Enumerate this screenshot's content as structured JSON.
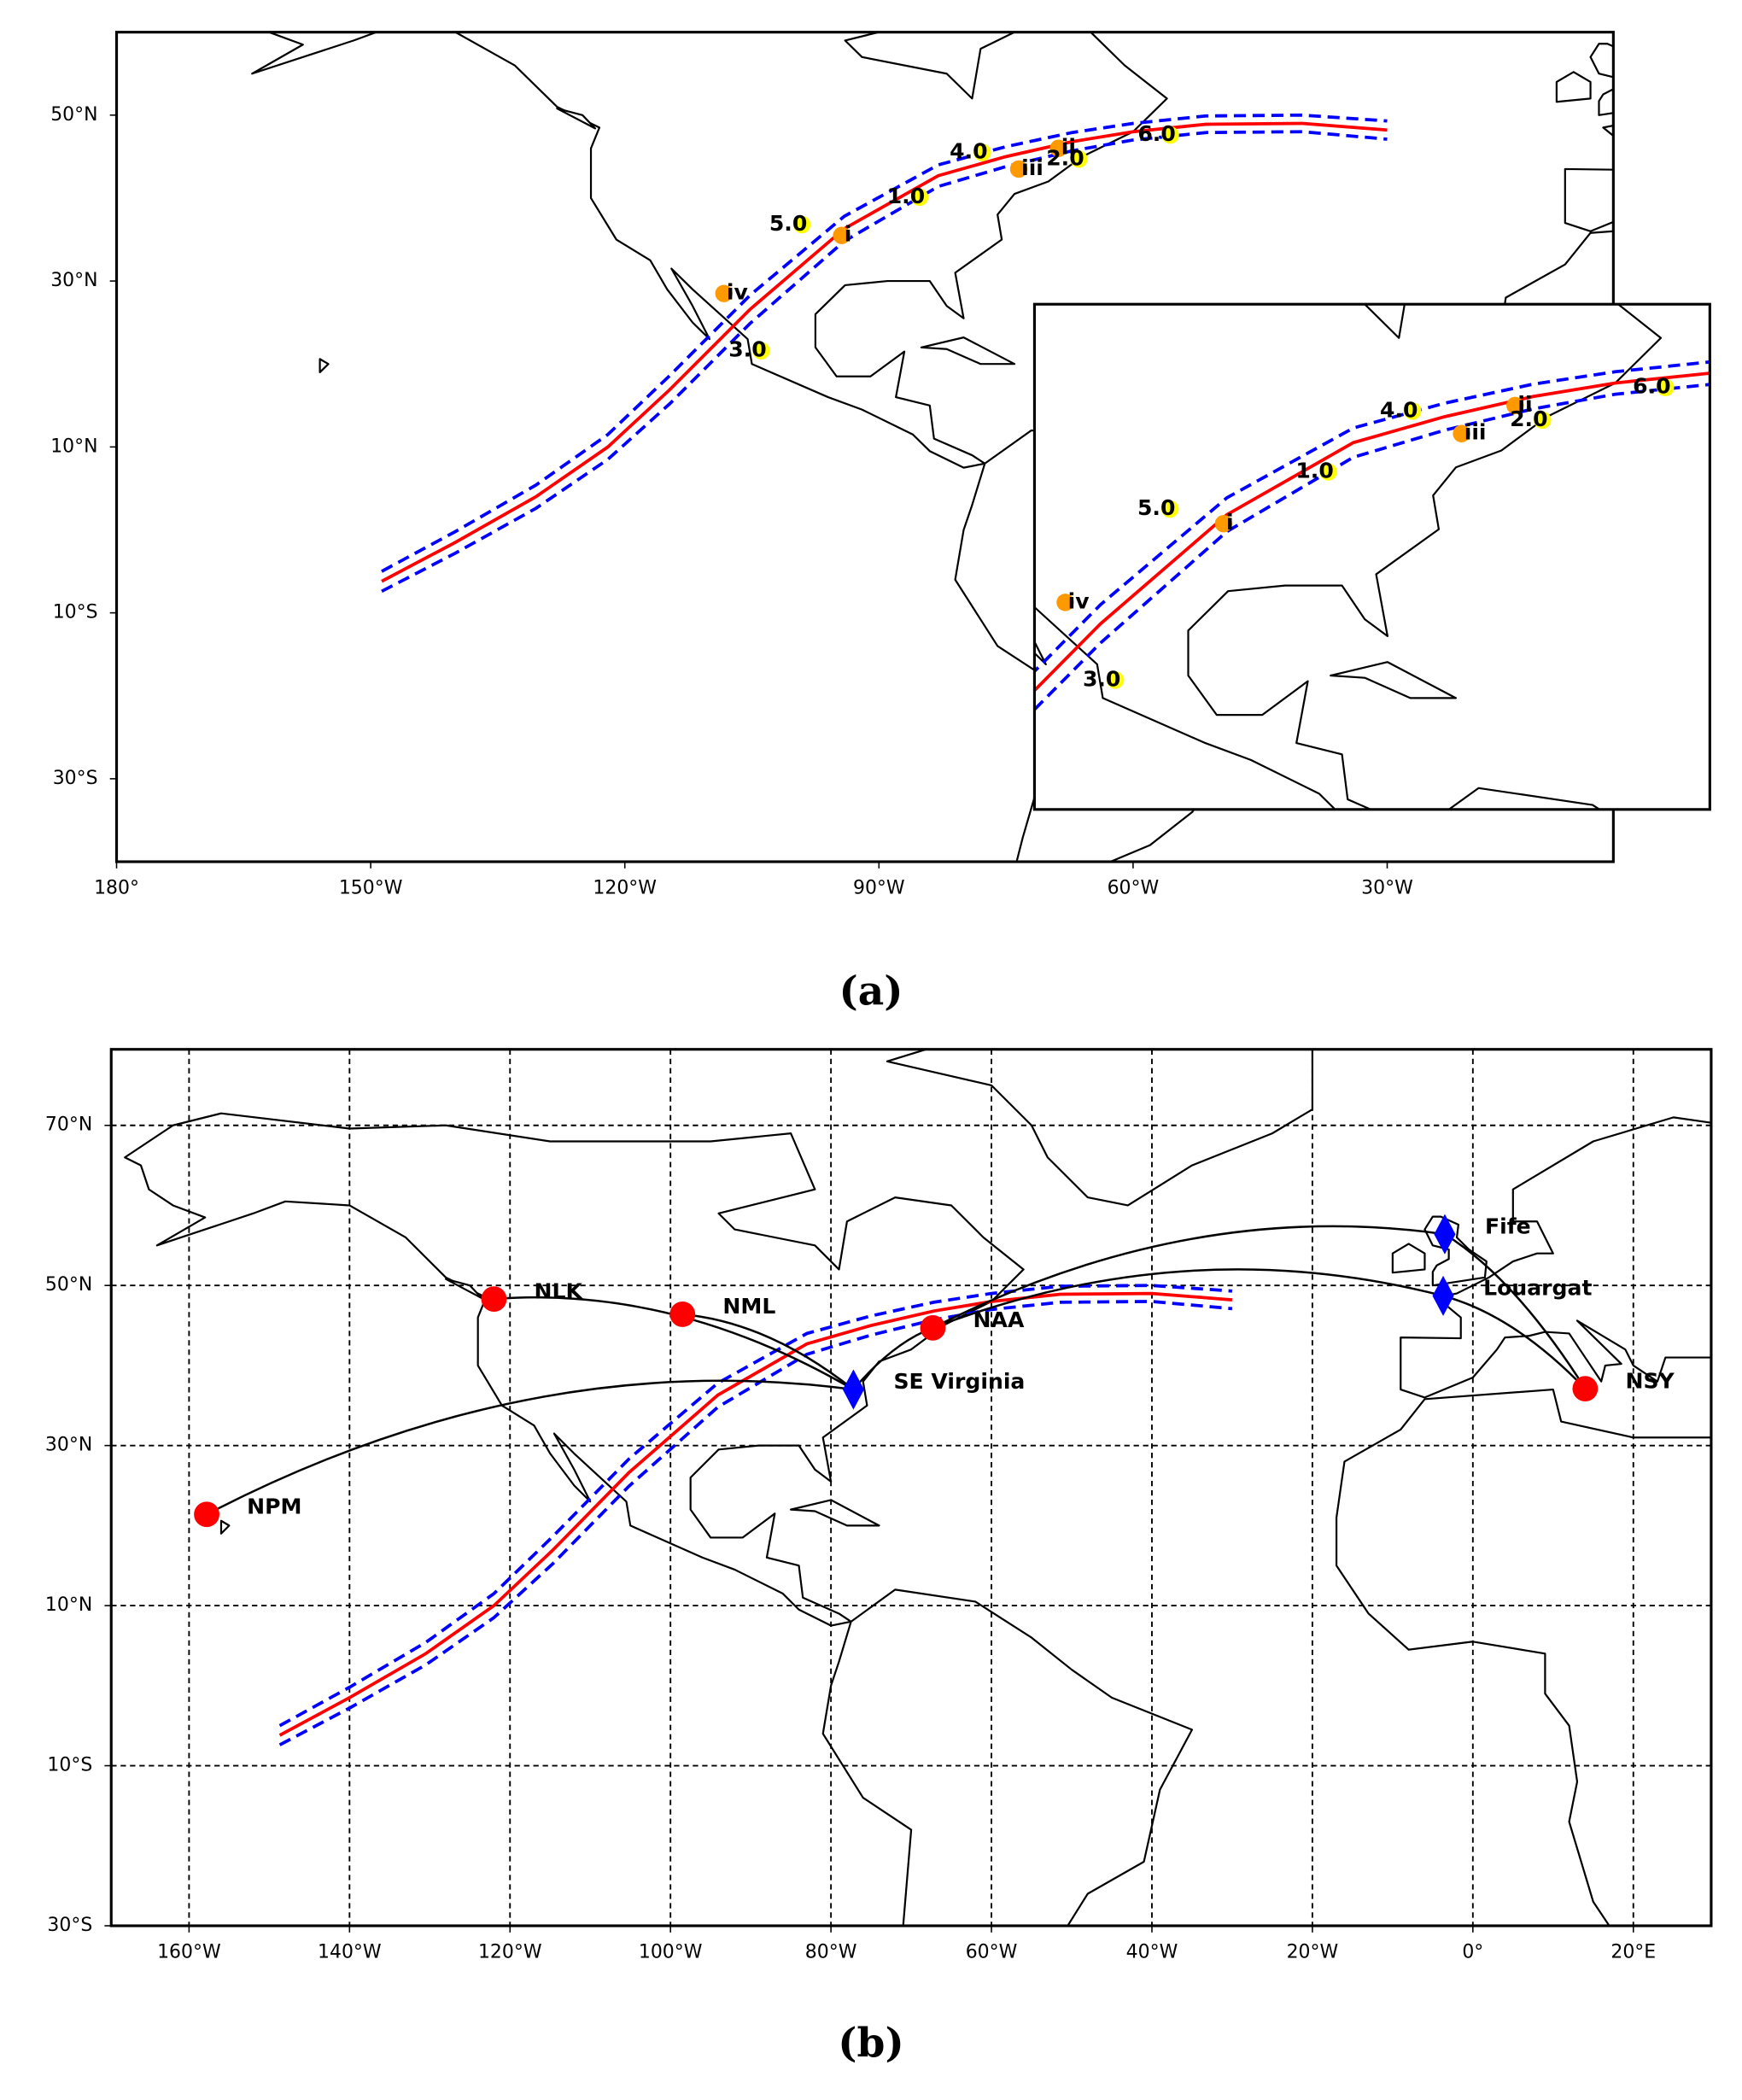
{
  "track": {
    "color": "#ff0000",
    "bound_color": "#0000ff",
    "lon": [
      -148.7,
      -140,
      -130.5,
      -122,
      -114.7,
      -105.2,
      -94.1,
      -83,
      -75,
      -67.2,
      -60,
      -51.4,
      -40,
      -30
    ],
    "lat": [
      -6.2,
      -1.5,
      4,
      10,
      16.9,
      26.6,
      36.3,
      42.7,
      45,
      46.8,
      48,
      48.9,
      49,
      48.2
    ],
    "upper_lat": [
      -5,
      -0.2,
      5.4,
      11.5,
      18.6,
      28.3,
      37.8,
      44,
      46.2,
      47.9,
      49,
      49.9,
      50,
      49.3
    ],
    "lower_lat": [
      -7.4,
      -2.8,
      2.6,
      8.5,
      15.2,
      24.9,
      34.8,
      41.4,
      43.8,
      45.7,
      47,
      47.9,
      48,
      47.1
    ]
  },
  "panels": [
    {
      "caption": "(a)",
      "grid": false,
      "xlim": [
        -180,
        -3.3
      ],
      "ylim": [
        -40,
        60
      ],
      "xticks": [
        {
          "value": -180,
          "label": "180°"
        },
        {
          "value": -150,
          "label": "150°W"
        },
        {
          "value": -120,
          "label": "120°W"
        },
        {
          "value": -90,
          "label": "90°W"
        },
        {
          "value": -60,
          "label": "60°W"
        },
        {
          "value": -30,
          "label": "30°W"
        }
      ],
      "yticks": [
        {
          "value": 50,
          "label": "50°N"
        },
        {
          "value": 30,
          "label": "30°N"
        },
        {
          "value": 10,
          "label": "10°N"
        },
        {
          "value": -10,
          "label": "10°S"
        },
        {
          "value": -30,
          "label": "30°S"
        }
      ],
      "markers": [
        {
          "label": "4.0",
          "lon": -77.8,
          "lat": 45.5,
          "color": "#ffff00"
        },
        {
          "label": "ii",
          "lon": -68.8,
          "lat": 46,
          "color": "#ff9900"
        },
        {
          "label": "6.0",
          "lon": -55.6,
          "lat": 47.6,
          "color": "#ffff00"
        },
        {
          "label": "iii",
          "lon": -73.5,
          "lat": 43.5,
          "color": "#ff9900"
        },
        {
          "label": "2.0",
          "lon": -66.4,
          "lat": 44.7,
          "color": "#ffff00"
        },
        {
          "label": "1.0",
          "lon": -85.2,
          "lat": 40.1,
          "color": "#ffff00"
        },
        {
          "label": "5.0",
          "lon": -99.1,
          "lat": 36.8,
          "color": "#ffff00"
        },
        {
          "label": "i",
          "lon": -94.4,
          "lat": 35.5,
          "color": "#ff9900"
        },
        {
          "label": "iv",
          "lon": -108.3,
          "lat": 28.5,
          "color": "#ff9900"
        },
        {
          "label": "3.0",
          "lon": -103.9,
          "lat": 21.6,
          "color": "#ffff00"
        }
      ]
    },
    {
      "caption": "(b)",
      "grid": true,
      "xlim": [
        -169.7,
        29.7
      ],
      "ylim": [
        -30,
        79.5
      ],
      "xticks": [
        {
          "value": -160,
          "label": "160°W"
        },
        {
          "value": -140,
          "label": "140°W"
        },
        {
          "value": -120,
          "label": "120°W"
        },
        {
          "value": -100,
          "label": "100°W"
        },
        {
          "value": -80,
          "label": "80°W"
        },
        {
          "value": -60,
          "label": "60°W"
        },
        {
          "value": -40,
          "label": "40°W"
        },
        {
          "value": -20,
          "label": "20°W"
        },
        {
          "value": 0,
          "label": "0°"
        },
        {
          "value": 20,
          "label": "20°E"
        }
      ],
      "yticks": [
        {
          "value": 70,
          "label": "70°N"
        },
        {
          "value": 50,
          "label": "50°N"
        },
        {
          "value": 30,
          "label": "30°N"
        },
        {
          "value": 10,
          "label": "10°N"
        },
        {
          "value": -10,
          "label": "10°S"
        },
        {
          "value": -30,
          "label": "30°S"
        }
      ],
      "station_color": "#ff0000",
      "receiver_color": "#0000ff",
      "stations": [
        {
          "label": "NLK",
          "lon": -122,
          "lat": 48.3
        },
        {
          "label": "NML",
          "lon": -98.5,
          "lat": 46.4
        },
        {
          "label": "NAA",
          "lon": -67.3,
          "lat": 44.7
        },
        {
          "label": "NSY",
          "lon": 14,
          "lat": 37.1
        },
        {
          "label": "NPM",
          "lon": -157.8,
          "lat": 21.4
        }
      ],
      "receivers": [
        {
          "label": "SE Virginia",
          "lon": -77.2,
          "lat": 37
        },
        {
          "label": "Fife",
          "lon": -3.5,
          "lat": 56.4
        },
        {
          "label": "Louargat",
          "lon": -3.7,
          "lat": 48.7
        }
      ]
    }
  ]
}
